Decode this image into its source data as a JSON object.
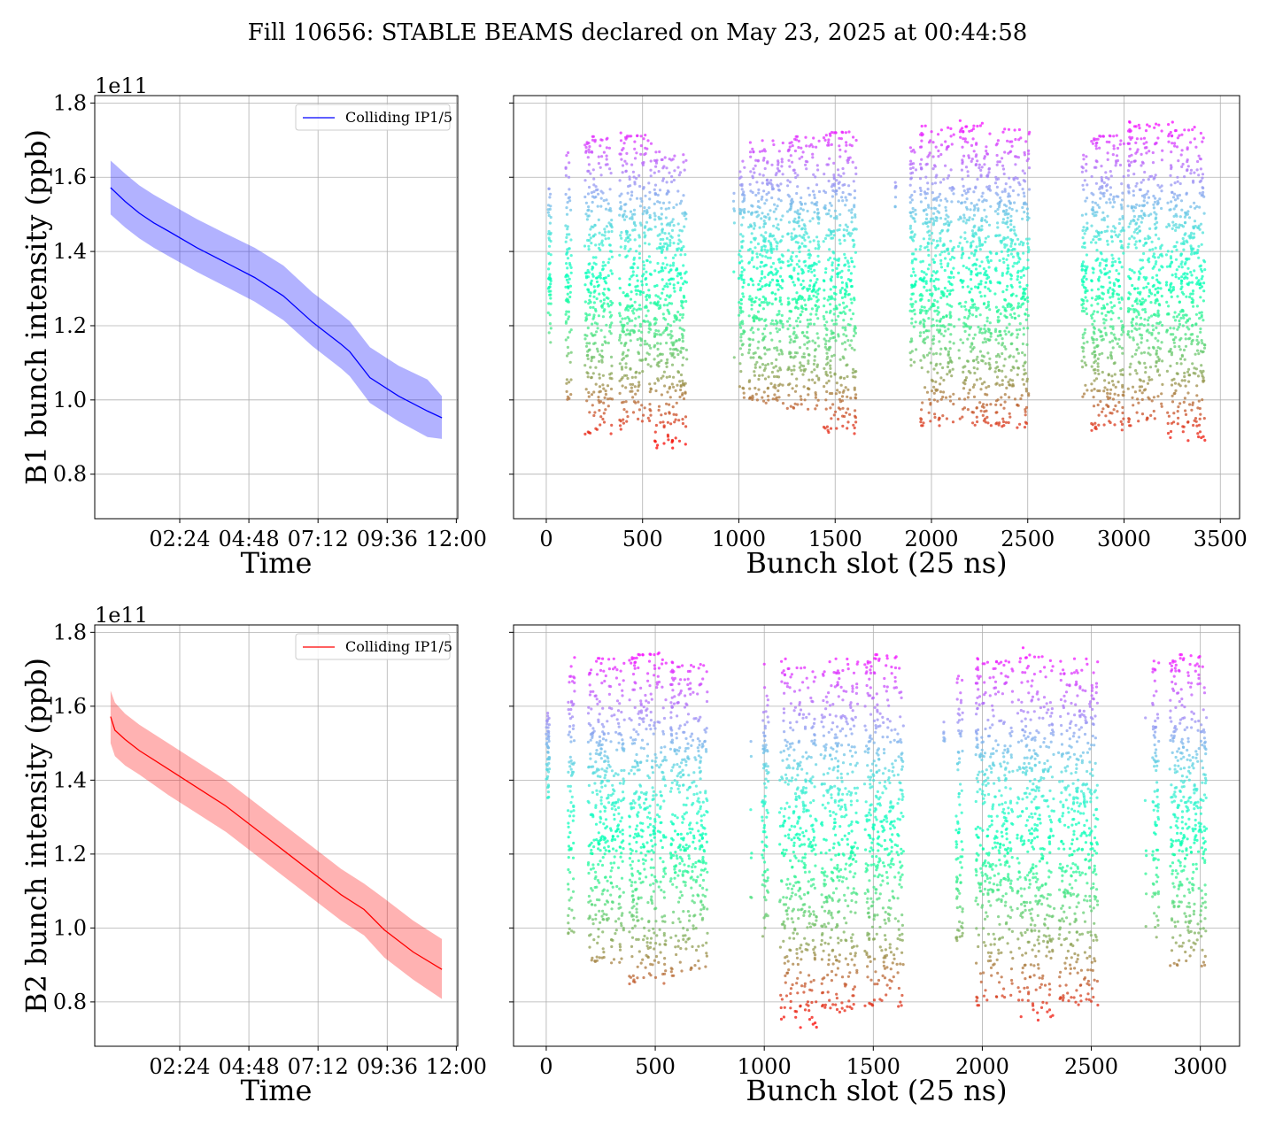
{
  "title": "Fill 10656: STABLE BEAMS declared on May 23, 2025 at 00:44:58",
  "colors": {
    "b1": "#0000ff",
    "b2": "#ff0000",
    "grid": "#b0b0b0",
    "axis": "#000000"
  },
  "chart_data": [
    {
      "id": "b1_time",
      "type": "line",
      "band": true,
      "ylabel": "B1 bunch intensity (ppb)",
      "xlabel": "Time",
      "offset_label": "1e11",
      "legend": {
        "label": "Colliding IP1/5",
        "placement": "top-right"
      },
      "grid": true,
      "x_unit": "hours",
      "xlim": [
        -0.55,
        12.05
      ],
      "ylim": [
        0.68,
        1.82
      ],
      "xticks": [
        2.4,
        4.8,
        7.2,
        9.6,
        12.0
      ],
      "xtick_labels": [
        "02:24",
        "04:48",
        "07:12",
        "09:36",
        "12:00"
      ],
      "yticks": [
        0.8,
        1.0,
        1.2,
        1.4,
        1.6,
        1.8
      ],
      "ytick_labels": [
        "0.8",
        "1.0",
        "1.2",
        "1.4",
        "1.6",
        "1.8"
      ],
      "series": [
        {
          "name": "Colliding IP1/5",
          "color": "#0000ff",
          "x": [
            0.0,
            0.5,
            1.0,
            1.5,
            2.0,
            3.0,
            4.0,
            5.0,
            6.0,
            7.0,
            8.0,
            8.3,
            9.0,
            10.0,
            11.0,
            11.5
          ],
          "mean": [
            1.572,
            1.535,
            1.503,
            1.477,
            1.455,
            1.41,
            1.37,
            1.33,
            1.28,
            1.21,
            1.15,
            1.13,
            1.06,
            1.01,
            0.97,
            0.952
          ],
          "upper": [
            1.645,
            1.61,
            1.578,
            1.553,
            1.531,
            1.487,
            1.448,
            1.41,
            1.362,
            1.29,
            1.231,
            1.212,
            1.142,
            1.092,
            1.055,
            1.01
          ],
          "lower": [
            1.5,
            1.465,
            1.435,
            1.41,
            1.388,
            1.345,
            1.305,
            1.265,
            1.215,
            1.145,
            1.085,
            1.064,
            0.992,
            0.942,
            0.9,
            0.895
          ]
        }
      ]
    },
    {
      "id": "b1_slot",
      "type": "scatter",
      "xlabel": "Bunch slot (25 ns)",
      "grid": true,
      "colormap": "rainbow",
      "xlim": [
        -170,
        3600
      ],
      "ylim": [
        0.68,
        1.82
      ],
      "xticks": [
        0,
        500,
        1000,
        1500,
        2000,
        2500,
        3000,
        3500
      ],
      "xtick_labels": [
        "0",
        "500",
        "1000",
        "1500",
        "2000",
        "2500",
        "3000",
        "3500"
      ],
      "yticks": [
        0.8,
        1.0,
        1.2,
        1.4,
        1.6,
        1.8
      ],
      "point_range": [
        0.87,
        1.76
      ],
      "trains": [
        {
          "start": 10,
          "end": 25,
          "ymin": 1.15,
          "ymax": 1.61
        },
        {
          "start": 100,
          "end": 130,
          "ymin": 1.0,
          "ymax": 1.67
        },
        {
          "start": 200,
          "end": 345,
          "ymin": 0.9,
          "ymax": 1.71
        },
        {
          "start": 380,
          "end": 545,
          "ymin": 0.92,
          "ymax": 1.72
        },
        {
          "start": 560,
          "end": 730,
          "ymin": 0.87,
          "ymax": 1.67
        },
        {
          "start": 1000,
          "end": 1030,
          "ymin": 1.0,
          "ymax": 1.66
        },
        {
          "start": 1050,
          "end": 1230,
          "ymin": 0.99,
          "ymax": 1.7
        },
        {
          "start": 1250,
          "end": 1420,
          "ymin": 0.97,
          "ymax": 1.71
        },
        {
          "start": 1440,
          "end": 1610,
          "ymin": 0.9,
          "ymax": 1.73
        },
        {
          "start": 1890,
          "end": 1920,
          "ymin": 1.05,
          "ymax": 1.68
        },
        {
          "start": 1940,
          "end": 2120,
          "ymin": 0.93,
          "ymax": 1.74
        },
        {
          "start": 2140,
          "end": 2310,
          "ymin": 0.93,
          "ymax": 1.76
        },
        {
          "start": 2330,
          "end": 2510,
          "ymin": 0.92,
          "ymax": 1.73
        },
        {
          "start": 2780,
          "end": 2810,
          "ymin": 1.0,
          "ymax": 1.66
        },
        {
          "start": 2830,
          "end": 3000,
          "ymin": 0.91,
          "ymax": 1.72
        },
        {
          "start": 3020,
          "end": 3200,
          "ymin": 0.93,
          "ymax": 1.75
        },
        {
          "start": 3220,
          "end": 3420,
          "ymin": 0.89,
          "ymax": 1.75
        }
      ],
      "sparse": [
        {
          "x": 975,
          "ymin": 1.1,
          "ymax": 1.6
        },
        {
          "x": 1815,
          "ymin": 1.52,
          "ymax": 1.6
        },
        {
          "x": 2835,
          "ymin": 1.0,
          "ymax": 1.58
        }
      ]
    },
    {
      "id": "b2_time",
      "type": "line",
      "band": true,
      "ylabel": "B2 bunch intensity (ppb)",
      "xlabel": "Time",
      "offset_label": "1e11",
      "legend": {
        "label": "Colliding IP1/5",
        "placement": "top-right"
      },
      "grid": true,
      "x_unit": "hours",
      "xlim": [
        -0.55,
        12.05
      ],
      "ylim": [
        0.68,
        1.82
      ],
      "xticks": [
        2.4,
        4.8,
        7.2,
        9.6,
        12.0
      ],
      "xtick_labels": [
        "02:24",
        "04:48",
        "07:12",
        "09:36",
        "12:00"
      ],
      "yticks": [
        0.8,
        1.0,
        1.2,
        1.4,
        1.6,
        1.8
      ],
      "ytick_labels": [
        "0.8",
        "1.0",
        "1.2",
        "1.4",
        "1.6",
        "1.8"
      ],
      "series": [
        {
          "name": "Colliding IP1/5",
          "color": "#ff0000",
          "x": [
            0.0,
            0.15,
            0.5,
            1.0,
            2.0,
            3.0,
            4.0,
            5.0,
            6.0,
            7.0,
            8.0,
            8.8,
            9.5,
            10.5,
            11.5
          ],
          "mean": [
            1.572,
            1.535,
            1.51,
            1.48,
            1.43,
            1.38,
            1.33,
            1.27,
            1.21,
            1.15,
            1.09,
            1.05,
            0.995,
            0.935,
            0.888
          ],
          "upper": [
            1.642,
            1.61,
            1.58,
            1.55,
            1.5,
            1.45,
            1.4,
            1.34,
            1.28,
            1.22,
            1.16,
            1.12,
            1.08,
            1.02,
            0.97
          ],
          "lower": [
            1.5,
            1.465,
            1.44,
            1.415,
            1.36,
            1.31,
            1.26,
            1.2,
            1.14,
            1.08,
            1.02,
            0.98,
            0.92,
            0.86,
            0.808
          ]
        }
      ]
    },
    {
      "id": "b2_slot",
      "type": "scatter",
      "xlabel": "Bunch slot (25 ns)",
      "grid": true,
      "colormap": "rainbow",
      "xlim": [
        -150,
        3180
      ],
      "ylim": [
        0.68,
        1.82
      ],
      "xticks": [
        0,
        500,
        1000,
        1500,
        2000,
        2500,
        3000
      ],
      "xtick_labels": [
        "0",
        "500",
        "1000",
        "1500",
        "2000",
        "2500",
        "3000"
      ],
      "yticks": [
        0.8,
        1.0,
        1.2,
        1.4,
        1.6,
        1.8
      ],
      "point_range": [
        0.73,
        1.76
      ],
      "trains": [
        {
          "start": 0,
          "end": 15,
          "ymin": 1.35,
          "ymax": 1.59
        },
        {
          "start": 100,
          "end": 130,
          "ymin": 0.97,
          "ymax": 1.74
        },
        {
          "start": 190,
          "end": 360,
          "ymin": 0.9,
          "ymax": 1.73
        },
        {
          "start": 380,
          "end": 550,
          "ymin": 0.84,
          "ymax": 1.75
        },
        {
          "start": 570,
          "end": 740,
          "ymin": 0.87,
          "ymax": 1.72
        },
        {
          "start": 990,
          "end": 1020,
          "ymin": 0.97,
          "ymax": 1.73
        },
        {
          "start": 1070,
          "end": 1240,
          "ymin": 0.73,
          "ymax": 1.73
        },
        {
          "start": 1260,
          "end": 1430,
          "ymin": 0.77,
          "ymax": 1.73
        },
        {
          "start": 1460,
          "end": 1640,
          "ymin": 0.78,
          "ymax": 1.74
        },
        {
          "start": 1880,
          "end": 1910,
          "ymin": 0.95,
          "ymax": 1.69
        },
        {
          "start": 1970,
          "end": 2140,
          "ymin": 0.79,
          "ymax": 1.73
        },
        {
          "start": 2160,
          "end": 2330,
          "ymin": 0.75,
          "ymax": 1.76
        },
        {
          "start": 2350,
          "end": 2530,
          "ymin": 0.79,
          "ymax": 1.73
        },
        {
          "start": 2780,
          "end": 2810,
          "ymin": 0.97,
          "ymax": 1.73
        },
        {
          "start": 2860,
          "end": 3030,
          "ymin": 0.89,
          "ymax": 1.74
        }
      ],
      "sparse": [
        {
          "x": 940,
          "ymin": 1.0,
          "ymax": 1.6
        },
        {
          "x": 1825,
          "ymin": 1.5,
          "ymax": 1.58
        },
        {
          "x": 2750,
          "ymin": 1.0,
          "ymax": 1.6
        }
      ]
    }
  ]
}
